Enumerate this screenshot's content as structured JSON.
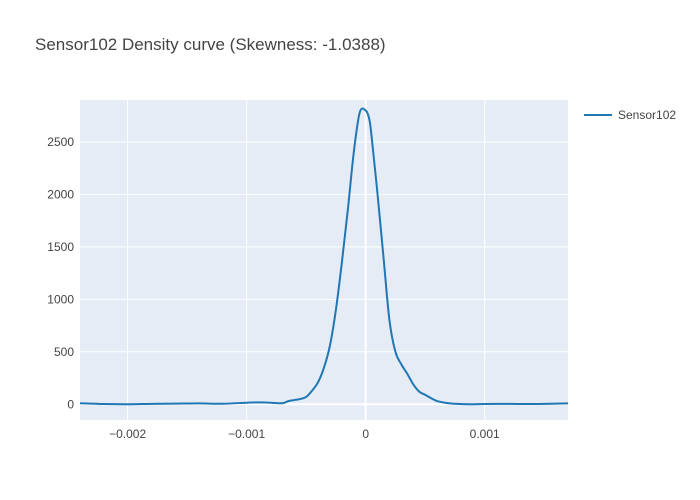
{
  "chart_data": {
    "type": "line",
    "title": "Sensor102 Density curve (Skewness: -1.0388)",
    "xlabel": "",
    "ylabel": "",
    "xlim": [
      -0.0024,
      0.0017
    ],
    "ylim": [
      -150,
      2900
    ],
    "x_ticks": [
      -0.002,
      -0.001,
      0,
      0.001
    ],
    "x_tick_labels": [
      "−0.002",
      "−0.001",
      "0",
      "0.001"
    ],
    "y_ticks": [
      0,
      500,
      1000,
      1500,
      2000,
      2500
    ],
    "y_tick_labels": [
      "0",
      "500",
      "1000",
      "1500",
      "2000",
      "2500"
    ],
    "grid": true,
    "legend_position": "top-right",
    "colors": {
      "plot_bg": "#e5ecf6",
      "grid": "#ffffff",
      "line": "#1f77b4"
    },
    "series": [
      {
        "name": "Sensor102",
        "color": "#1f77b4",
        "x": [
          -0.0024,
          -0.0022,
          -0.002,
          -0.0018,
          -0.0016,
          -0.0014,
          -0.0012,
          -0.001,
          -0.0009,
          -0.0008,
          -0.0007,
          -0.00065,
          -0.0006,
          -0.00055,
          -0.0005,
          -0.00045,
          -0.0004,
          -0.00035,
          -0.0003,
          -0.00025,
          -0.0002,
          -0.00015,
          -0.0001,
          -5e-05,
          0.0,
          3e-05,
          5e-05,
          0.0001,
          0.00015,
          0.0002,
          0.00025,
          0.0003,
          0.00035,
          0.0004,
          0.00045,
          0.0005,
          0.0006,
          0.0007,
          0.0008,
          0.0009,
          0.001,
          0.0012,
          0.0014,
          0.0016,
          0.0017
        ],
        "y": [
          10,
          2,
          0,
          4,
          6,
          8,
          5,
          15,
          18,
          15,
          10,
          30,
          40,
          50,
          70,
          130,
          210,
          350,
          560,
          900,
          1350,
          1850,
          2400,
          2780,
          2800,
          2720,
          2550,
          2000,
          1400,
          800,
          500,
          380,
          290,
          190,
          120,
          90,
          30,
          10,
          2,
          0,
          2,
          4,
          2,
          6,
          8
        ]
      }
    ]
  }
}
